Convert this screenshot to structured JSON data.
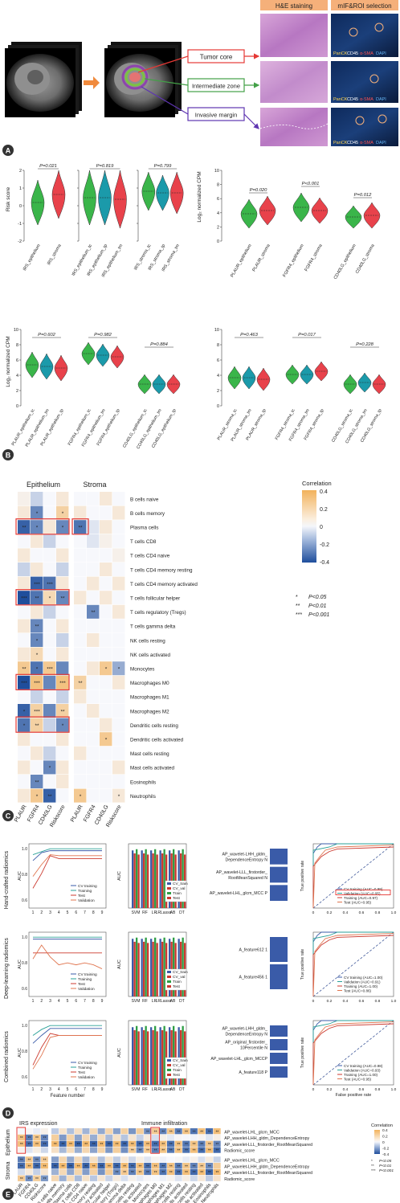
{
  "panel_letters": [
    "A",
    "B",
    "C",
    "D",
    "E"
  ],
  "colors": {
    "violin_green": "#3ab54a",
    "violin_red": "#e8424b",
    "violin_teal": "#1b9aaa",
    "corr_pos": "#f2b25c",
    "corr_neg": "#1f4e9c",
    "line_blue": "#3a5ba8",
    "line_teal": "#2aa198",
    "line_green": "#2e9e44",
    "line_red": "#cc3a2f",
    "tumor_core": "#e53935",
    "intermediate": "#43a047",
    "invasive": "#5e35b1",
    "he_purple": "#c689c9",
    "mif_dark": "#0b1a3a",
    "banner_salmon": "#f5b07a"
  },
  "panel_a": {
    "headers": [
      "H&E staining",
      "mIF&ROI selection"
    ],
    "regions": [
      "Tumor core",
      "Intermediate zone",
      "Invasive margin"
    ],
    "stain_legend": [
      "PanCK",
      "CD45",
      "α-SMA",
      "DAPI"
    ]
  },
  "panel_b": {
    "top_left": {
      "ylabel": "Risk score",
      "groups": [
        {
          "p": "P=0.021",
          "labels": [
            "IRS_epithelium",
            "IRS_stroma"
          ]
        },
        {
          "p": "P=0.819",
          "labels": [
            "IRS_epithelium_tc",
            "IRS_epithelium_tp",
            "IRS_epithelium_tm"
          ]
        },
        {
          "p": "P=0.799",
          "labels": [
            "IRS_stroma_tc",
            "IRS_stroma_tp",
            "IRS_stroma_tm"
          ]
        }
      ],
      "yticks": [
        "2",
        "1",
        "0",
        "-1",
        "-2"
      ]
    },
    "top_right": {
      "ylabel": "Log₂ normalized CPM",
      "yticks": [
        "10",
        "8",
        "6",
        "4",
        "2",
        "0"
      ],
      "p_values": [
        "P=0.020",
        "P<0.001",
        "P=0.012"
      ],
      "labels": [
        "PLAUR_epithelium",
        "PLAUR_stroma",
        "FGFR4_epithelium",
        "FGFR4_stroma",
        "CD40LG_epithelium",
        "CD40LG_stroma"
      ]
    },
    "bottom_left": {
      "ylabel": "Log₂ normalized CPM",
      "yticks": [
        "10",
        "8",
        "6",
        "4",
        "2",
        "0"
      ],
      "p_values": [
        "P=0.602",
        "P=0.982",
        "P=0.884"
      ],
      "labels": [
        "PLAUR_epithelium_tc",
        "PLAUR_epithelium_tm",
        "PLAUR_epithelium_tp",
        "FGFR4_epithelium_tc",
        "FGFR4_epithelium_tm",
        "FGFR4_epithelium_tp",
        "CD40LG_epithelium_tc",
        "CD40LG_epithelium_tm",
        "CD40LG_epithelium_tp"
      ]
    },
    "bottom_right": {
      "yticks": [
        "10",
        "8",
        "6",
        "4",
        "2",
        "0"
      ],
      "p_values": [
        "P=0.463",
        "P=0.017",
        "P=0.228"
      ],
      "labels": [
        "PLAUR_stroma_tc",
        "PLAUR_stroma_tm",
        "PLAUR_stroma_tp",
        "FGFR4_stroma_tc",
        "FGFR4_stroma_tm",
        "FGFR4_stroma_tp",
        "CD40LG_stroma_tc",
        "CD40LG_stroma_tm",
        "CD40LG_stroma_tp"
      ]
    }
  },
  "panel_c": {
    "col_headers": [
      "Epithelium",
      "Stroma"
    ],
    "cols": [
      "PLAUR",
      "FGFR4",
      "CD40LG",
      "Riskscore",
      "PLAUR",
      "FGFR4",
      "CD40LG",
      "Riskscore"
    ],
    "rows": [
      "B cells naive",
      "B cells memory",
      "Plasma cells",
      "T cells CD8",
      "T cells CD4 naive",
      "T cells CD4 memory resting",
      "T cells CD4 memory activated",
      "T cells follicular helper",
      "T cells regulatory (Tregs)",
      "T cells gamma delta",
      "NK cells resting",
      "NK cells activated",
      "Monocytes",
      "Macrophages M0",
      "Macrophages M1",
      "Macrophages M2",
      "Dendritic cells resting",
      "Dendritic cells activated",
      "Mast cells resting",
      "Mast cells activated",
      "Eosinophils",
      "Neutrophils"
    ],
    "values": [
      [
        0.05,
        -0.1,
        0.0,
        0.1,
        0.0,
        0.0,
        0.1,
        0.0
      ],
      [
        0.1,
        -0.3,
        0.0,
        0.25,
        0.1,
        0.0,
        0.0,
        0.1
      ],
      [
        -0.4,
        -0.3,
        0.1,
        -0.3,
        -0.35,
        -0.05,
        0.1,
        0.0
      ],
      [
        0.0,
        0.1,
        -0.1,
        0.0,
        0.0,
        -0.05,
        0.05,
        0.0
      ],
      [
        0.1,
        0.0,
        0.0,
        0.1,
        0.0,
        0.0,
        0.0,
        0.05
      ],
      [
        -0.1,
        0.1,
        0.0,
        -0.1,
        0.0,
        0.0,
        0.1,
        0.0
      ],
      [
        0.1,
        -0.4,
        -0.35,
        0.1,
        0.0,
        0.1,
        0.0,
        0.1
      ],
      [
        -0.45,
        -0.35,
        0.2,
        -0.3,
        0.1,
        0.0,
        0.1,
        0.0
      ],
      [
        0.0,
        0.1,
        -0.1,
        0.0,
        0.0,
        -0.3,
        0.0,
        0.1
      ],
      [
        0.1,
        -0.3,
        0.0,
        0.1,
        0.0,
        0.0,
        0.0,
        0.0
      ],
      [
        0.0,
        -0.3,
        0.0,
        -0.1,
        0.0,
        0.1,
        0.0,
        0.0
      ],
      [
        0.1,
        0.2,
        0.0,
        0.1,
        0.0,
        0.0,
        0.0,
        0.0
      ],
      [
        0.3,
        -0.35,
        0.3,
        -0.3,
        0.0,
        0.1,
        0.3,
        -0.2
      ],
      [
        -0.45,
        0.35,
        -0.3,
        0.35,
        0.25,
        0.0,
        0.0,
        0.1
      ],
      [
        0.0,
        -0.1,
        0.0,
        -0.1,
        0.1,
        0.0,
        0.0,
        0.0
      ],
      [
        -0.4,
        0.25,
        -0.3,
        0.25,
        0.0,
        0.1,
        0.0,
        0.0
      ],
      [
        -0.35,
        0.25,
        -0.1,
        -0.3,
        0.0,
        0.0,
        0.1,
        0.0
      ],
      [
        0.1,
        0.0,
        0.0,
        0.1,
        0.0,
        0.0,
        0.3,
        0.0
      ],
      [
        0.0,
        0.1,
        -0.1,
        0.0,
        0.1,
        0.0,
        0.0,
        0.0
      ],
      [
        0.1,
        0.0,
        -0.3,
        0.1,
        0.0,
        0.0,
        0.0,
        0.1
      ],
      [
        0.0,
        -0.3,
        0.0,
        0.1,
        0.0,
        0.0,
        0.0,
        0.0
      ],
      [
        0.1,
        0.3,
        -0.4,
        0.0,
        0.3,
        0.0,
        0.0,
        0.1
      ]
    ],
    "stars": [
      [
        "",
        "",
        "",
        "",
        "",
        "",
        "",
        ""
      ],
      [
        "",
        "*",
        "",
        "*",
        "",
        "",
        "",
        ""
      ],
      [
        "**",
        "*",
        "",
        "*",
        "**",
        "",
        "",
        ""
      ],
      [
        "",
        "",
        "",
        "",
        "",
        "",
        "",
        ""
      ],
      [
        "",
        "",
        "",
        "",
        "",
        "",
        "",
        ""
      ],
      [
        "",
        "",
        "",
        "",
        "",
        "",
        "",
        ""
      ],
      [
        "",
        "***",
        "***",
        "",
        "",
        "",
        "",
        ""
      ],
      [
        "***",
        "**",
        "*",
        "**",
        "",
        "",
        "",
        ""
      ],
      [
        "",
        "",
        "",
        "",
        "",
        "**",
        "",
        ""
      ],
      [
        "",
        "**",
        "",
        "",
        "",
        "",
        "",
        ""
      ],
      [
        "",
        "*",
        "",
        "",
        "",
        "",
        "",
        ""
      ],
      [
        "",
        "*",
        "",
        "",
        "",
        "",
        "",
        ""
      ],
      [
        "**",
        "*",
        "***",
        "",
        "",
        "",
        "*",
        "*"
      ],
      [
        "***",
        "***",
        "",
        "***",
        "**",
        "",
        "",
        ""
      ],
      [
        "",
        "",
        "",
        "",
        "",
        "",
        "",
        ""
      ],
      [
        "*",
        "***",
        "",
        "**",
        "",
        "",
        "",
        ""
      ],
      [
        "*",
        "**",
        "",
        "*",
        "",
        "",
        "",
        ""
      ],
      [
        "",
        "",
        "",
        "",
        "",
        "",
        "*",
        ""
      ],
      [
        "",
        "",
        "",
        "",
        "",
        "",
        "",
        ""
      ],
      [
        "",
        "",
        "*",
        "",
        "",
        "",
        "",
        ""
      ],
      [
        "",
        "**",
        "",
        "",
        "",
        "",
        "",
        ""
      ],
      [
        "",
        "*",
        "**",
        "",
        "*",
        "",
        "",
        "*"
      ]
    ],
    "highlight_rows": [
      [
        2,
        2
      ],
      [
        7,
        7
      ],
      [
        13,
        13
      ],
      [
        16,
        16
      ]
    ],
    "legend_title": "Correlation",
    "legend_ticks": [
      "0.4",
      "0.2",
      "0",
      "-0.2",
      "-0.4"
    ],
    "sig_legend": [
      {
        "stars": "*",
        "text": "P<0.05"
      },
      {
        "stars": "**",
        "text": "P<0.01"
      },
      {
        "stars": "***",
        "text": "P<0.001"
      }
    ]
  },
  "panel_d": {
    "row_labels": [
      "Hand-crafted radiomics",
      "Deep-learning radiomics",
      "Combined radiomics"
    ],
    "auc_label": "AUC",
    "feature_number_label": "Feature number",
    "feature_ticks": [
      "1",
      "2",
      "3",
      "4",
      "5",
      "6",
      "7",
      "8",
      "9"
    ],
    "auc_ticks": [
      "1.0",
      "0.8",
      "0.6",
      "0.4",
      "0.2",
      "0.0"
    ],
    "line_legend": [
      "CV training",
      "Training",
      "Test",
      "Validation"
    ],
    "models": [
      "SVM",
      "RF",
      "LR",
      "LRLasso",
      "AB",
      "DT"
    ],
    "bar_legend": [
      "CV_train",
      "CV_val",
      "Train",
      "Test"
    ],
    "features": [
      [
        "AP_wavelet-LHH_gldm_DependenceEntropy N",
        "AP_wavelet-LLL_firstorder_RootMeanSquared N",
        "AP_wavelet-LHL_glcm_MCC P"
      ],
      [
        "A_feature612 1",
        "A_feature456 1"
      ],
      [
        "AP_wavelet-LHH_gldm_DependenceEntropy N",
        "AP_original_firstorder_10Percentile N",
        "AP_wavelet-LHL_glcm_MCCP",
        "A_feature118 P"
      ]
    ],
    "roc_ylabel": "True positive rate",
    "roc_xlabel": "False positive rate",
    "roc_ticks": [
      "0",
      "0.2",
      "0.4",
      "0.6",
      "0.8",
      "1.0"
    ],
    "roc_legends": [
      [
        "CV training (AUC=0.99)",
        "Validation (AUC=0.95)",
        "Training (AUC=0.97)",
        "Test (AUC=0.95)"
      ],
      [
        "CV training (AUC=1.00)",
        "Validation (AUC=0.91)",
        "Training (AUC=1.00)",
        "Test (AUC=0.86)"
      ],
      [
        "CV training (AUC=0.98)",
        "Validation (AUC=0.93)",
        "Training (AUC=1.00)",
        "Test (AUC=0.95)"
      ]
    ]
  },
  "panel_e": {
    "left_title": "IRS expression",
    "right_title": "Immune infiltration",
    "side_labels": [
      "Epithelium",
      "Stroma"
    ],
    "left_cols": [
      "PLAUR",
      "FGFR4",
      "CD40LG",
      "Riskscore"
    ],
    "right_cols": [
      "B cells naive",
      "B cells memory",
      "Plasma cells",
      "T cells CD8",
      "T cells CD4 naive",
      "T cells CD4 memory resting",
      "T cells CD4 memory activated",
      "T cells follicular helper",
      "T cells regulatory (Tregs)",
      "T cells gamma delta",
      "NK cells resting",
      "NK cells activated",
      "Monocytes",
      "Macrophages M0",
      "Macrophages M1",
      "Macrophages M2",
      "Dendritic cells resting",
      "Dendritic cells activated",
      "Mast cells resting",
      "Mast cells activated",
      "Eosinophils",
      "Neutrophils"
    ],
    "row_labels": [
      "AP_wavelet-LHL_glcm_MCC",
      "AP_wavelet-LHH_gldm_DependenceEntropy",
      "AP_wavelet-LLL_firstorder_RootMeanSquared",
      "Radiomic_score",
      "AP_wavelet-LHL_glcm_MCC",
      "AP_wavelet-LHH_gldm_DependenceEntropy",
      "AP_wavelet-LLL_firstorder_RootMeanSquared",
      "Radiomic_score"
    ],
    "legend_title": "Correlation",
    "legend_ticks": [
      "0.4",
      "0.2",
      "0",
      "-0.2",
      "-0.4"
    ],
    "sig_legend": [
      {
        "stars": "*",
        "text": "P<0.05"
      },
      {
        "stars": "**",
        "text": "P<0.01"
      },
      {
        "stars": "***",
        "text": "P<0.001"
      }
    ]
  }
}
